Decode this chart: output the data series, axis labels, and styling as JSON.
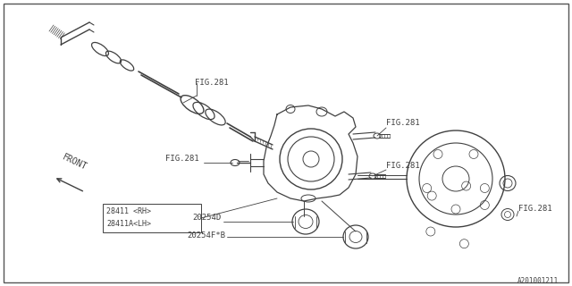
{
  "bg_color": "#ffffff",
  "line_color": "#404040",
  "text_color": "#404040",
  "fig_width": 6.4,
  "fig_height": 3.2,
  "dpi": 100,
  "labels": {
    "fig281_axle": "FIG.281",
    "fig281_bolt_left": "FIG.281",
    "fig281_top_right": "FIG.281",
    "fig281_screw_right": "FIG.281",
    "fig281_nut": "FIG.281",
    "part_28411": "28411 <RH>",
    "part_28411a": "28411A<LH>",
    "part_20254d": "20254D",
    "part_20254fb": "20254F*B",
    "front_label": "FRONT",
    "ref_code": "A201001211"
  }
}
